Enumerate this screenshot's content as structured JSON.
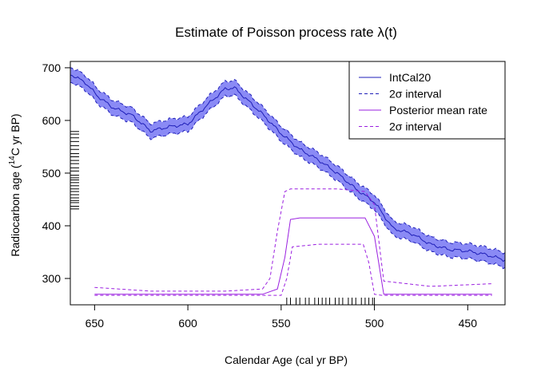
{
  "chart_data": {
    "type": "line",
    "title": "Estimate of Poisson process rate λ(t)",
    "xlabel": "Calendar Age (cal yr BP)",
    "ylabel": "Radiocarbon age (",
    "ylabel_sup": "14",
    "ylabel_tail": "C yr BP)",
    "xlim": [
      663,
      430
    ],
    "ylim": [
      250,
      712
    ],
    "x_ticks": [
      650,
      600,
      550,
      500,
      450
    ],
    "y_ticks": [
      300,
      400,
      500,
      600,
      700
    ],
    "x_tick_labels": [
      "650",
      "600",
      "550",
      "500",
      "450"
    ],
    "y_tick_labels": [
      "300",
      "400",
      "500",
      "600",
      "700"
    ],
    "grid": false,
    "legend_position": "top-right",
    "legend": [
      {
        "label": "IntCal20",
        "style": "solid",
        "color": "#1f1fb8"
      },
      {
        "label": "2σ interval",
        "style": "dashed",
        "color": "#1f1fb8"
      },
      {
        "label": "Posterior mean rate",
        "style": "solid",
        "color": "#9a1fe0"
      },
      {
        "label": "2σ interval",
        "style": "dashed",
        "color": "#9a1fe0"
      }
    ],
    "colors": {
      "intcal_line": "#1f1fb8",
      "intcal_band": "#8a8af5",
      "rate_line": "#9a1fe0"
    },
    "series": [
      {
        "name": "IntCal20",
        "x": [
          663,
          655,
          648,
          640,
          630,
          620,
          610,
          600,
          590,
          580,
          575,
          570,
          560,
          550,
          540,
          530,
          520,
          510,
          500,
          490,
          480,
          470,
          460,
          450,
          440,
          430
        ],
        "y": [
          688,
          672,
          645,
          624,
          610,
          580,
          588,
          593,
          628,
          660,
          662,
          645,
          612,
          575,
          545,
          525,
          500,
          470,
          445,
          395,
          385,
          365,
          355,
          352,
          345,
          335
        ],
        "band": 14
      },
      {
        "name": "Posterior mean rate",
        "x": [
          650,
          620,
          580,
          560,
          552,
          548,
          545,
          540,
          520,
          505,
          500,
          495,
          437
        ],
        "y": [
          270,
          270,
          270,
          270,
          280,
          340,
          412,
          415,
          415,
          415,
          380,
          270,
          270
        ]
      },
      {
        "name": "2σ interval",
        "x": [
          650,
          620,
          580,
          560,
          556,
          552,
          548,
          545,
          520,
          505,
          500,
          495,
          470,
          437
        ],
        "y": [
          283,
          276,
          276,
          280,
          300,
          390,
          465,
          470,
          470,
          465,
          440,
          295,
          285,
          290
        ]
      },
      {
        "name": "2σ interval",
        "x": [
          650,
          620,
          580,
          550,
          547,
          544,
          530,
          506,
          503,
          500,
          496,
          437
        ],
        "y": [
          268,
          268,
          268,
          268,
          300,
          360,
          365,
          365,
          330,
          270,
          268,
          268
        ]
      }
    ],
    "obs_y": [
      432,
      437,
      444,
      448,
      453,
      459,
      465,
      470,
      476,
      482,
      487,
      491,
      496,
      504,
      510,
      518,
      524,
      531,
      537,
      545,
      552,
      560,
      567,
      574,
      579
    ],
    "obs_x": [
      547,
      545,
      542,
      540,
      537,
      535,
      532,
      530,
      528,
      526,
      524,
      521,
      519,
      517,
      514,
      512,
      510,
      507,
      505,
      503,
      501,
      500
    ]
  }
}
